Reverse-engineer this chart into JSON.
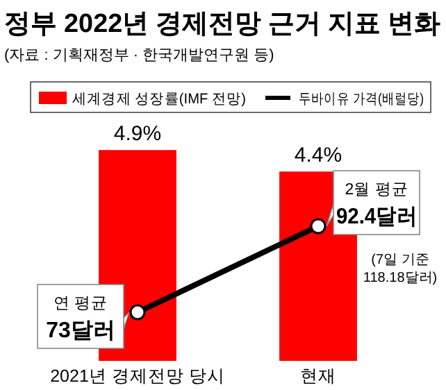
{
  "chart_data": {
    "type": "bar",
    "title": "정부 2022년 경제전망 근거 지표 변화",
    "subtitle": "(자료 : 기획재정부 · 한국개발연구원 등)",
    "categories": [
      "2021년 경제전망 당시",
      "현재"
    ],
    "series": [
      {
        "name": "세계경제 성장률(IMF 전망)",
        "color": "#ff0000",
        "values": [
          4.9,
          4.4
        ],
        "value_labels": [
          "4.9%",
          "4.4%"
        ]
      },
      {
        "name": "두바이유 가격(배럴당)",
        "type": "line",
        "axis": "y2",
        "color": "#000000",
        "marker": "circle",
        "values": [
          73,
          92.4
        ],
        "value_labels": [
          "73달러",
          "92.4달러"
        ]
      }
    ],
    "ylim": [
      0,
      5
    ],
    "tick_labels": "x",
    "legend": "top",
    "annotations": [
      "연 평균",
      "2월 평균",
      "(7일 기준\n118.18달러)"
    ]
  }
}
